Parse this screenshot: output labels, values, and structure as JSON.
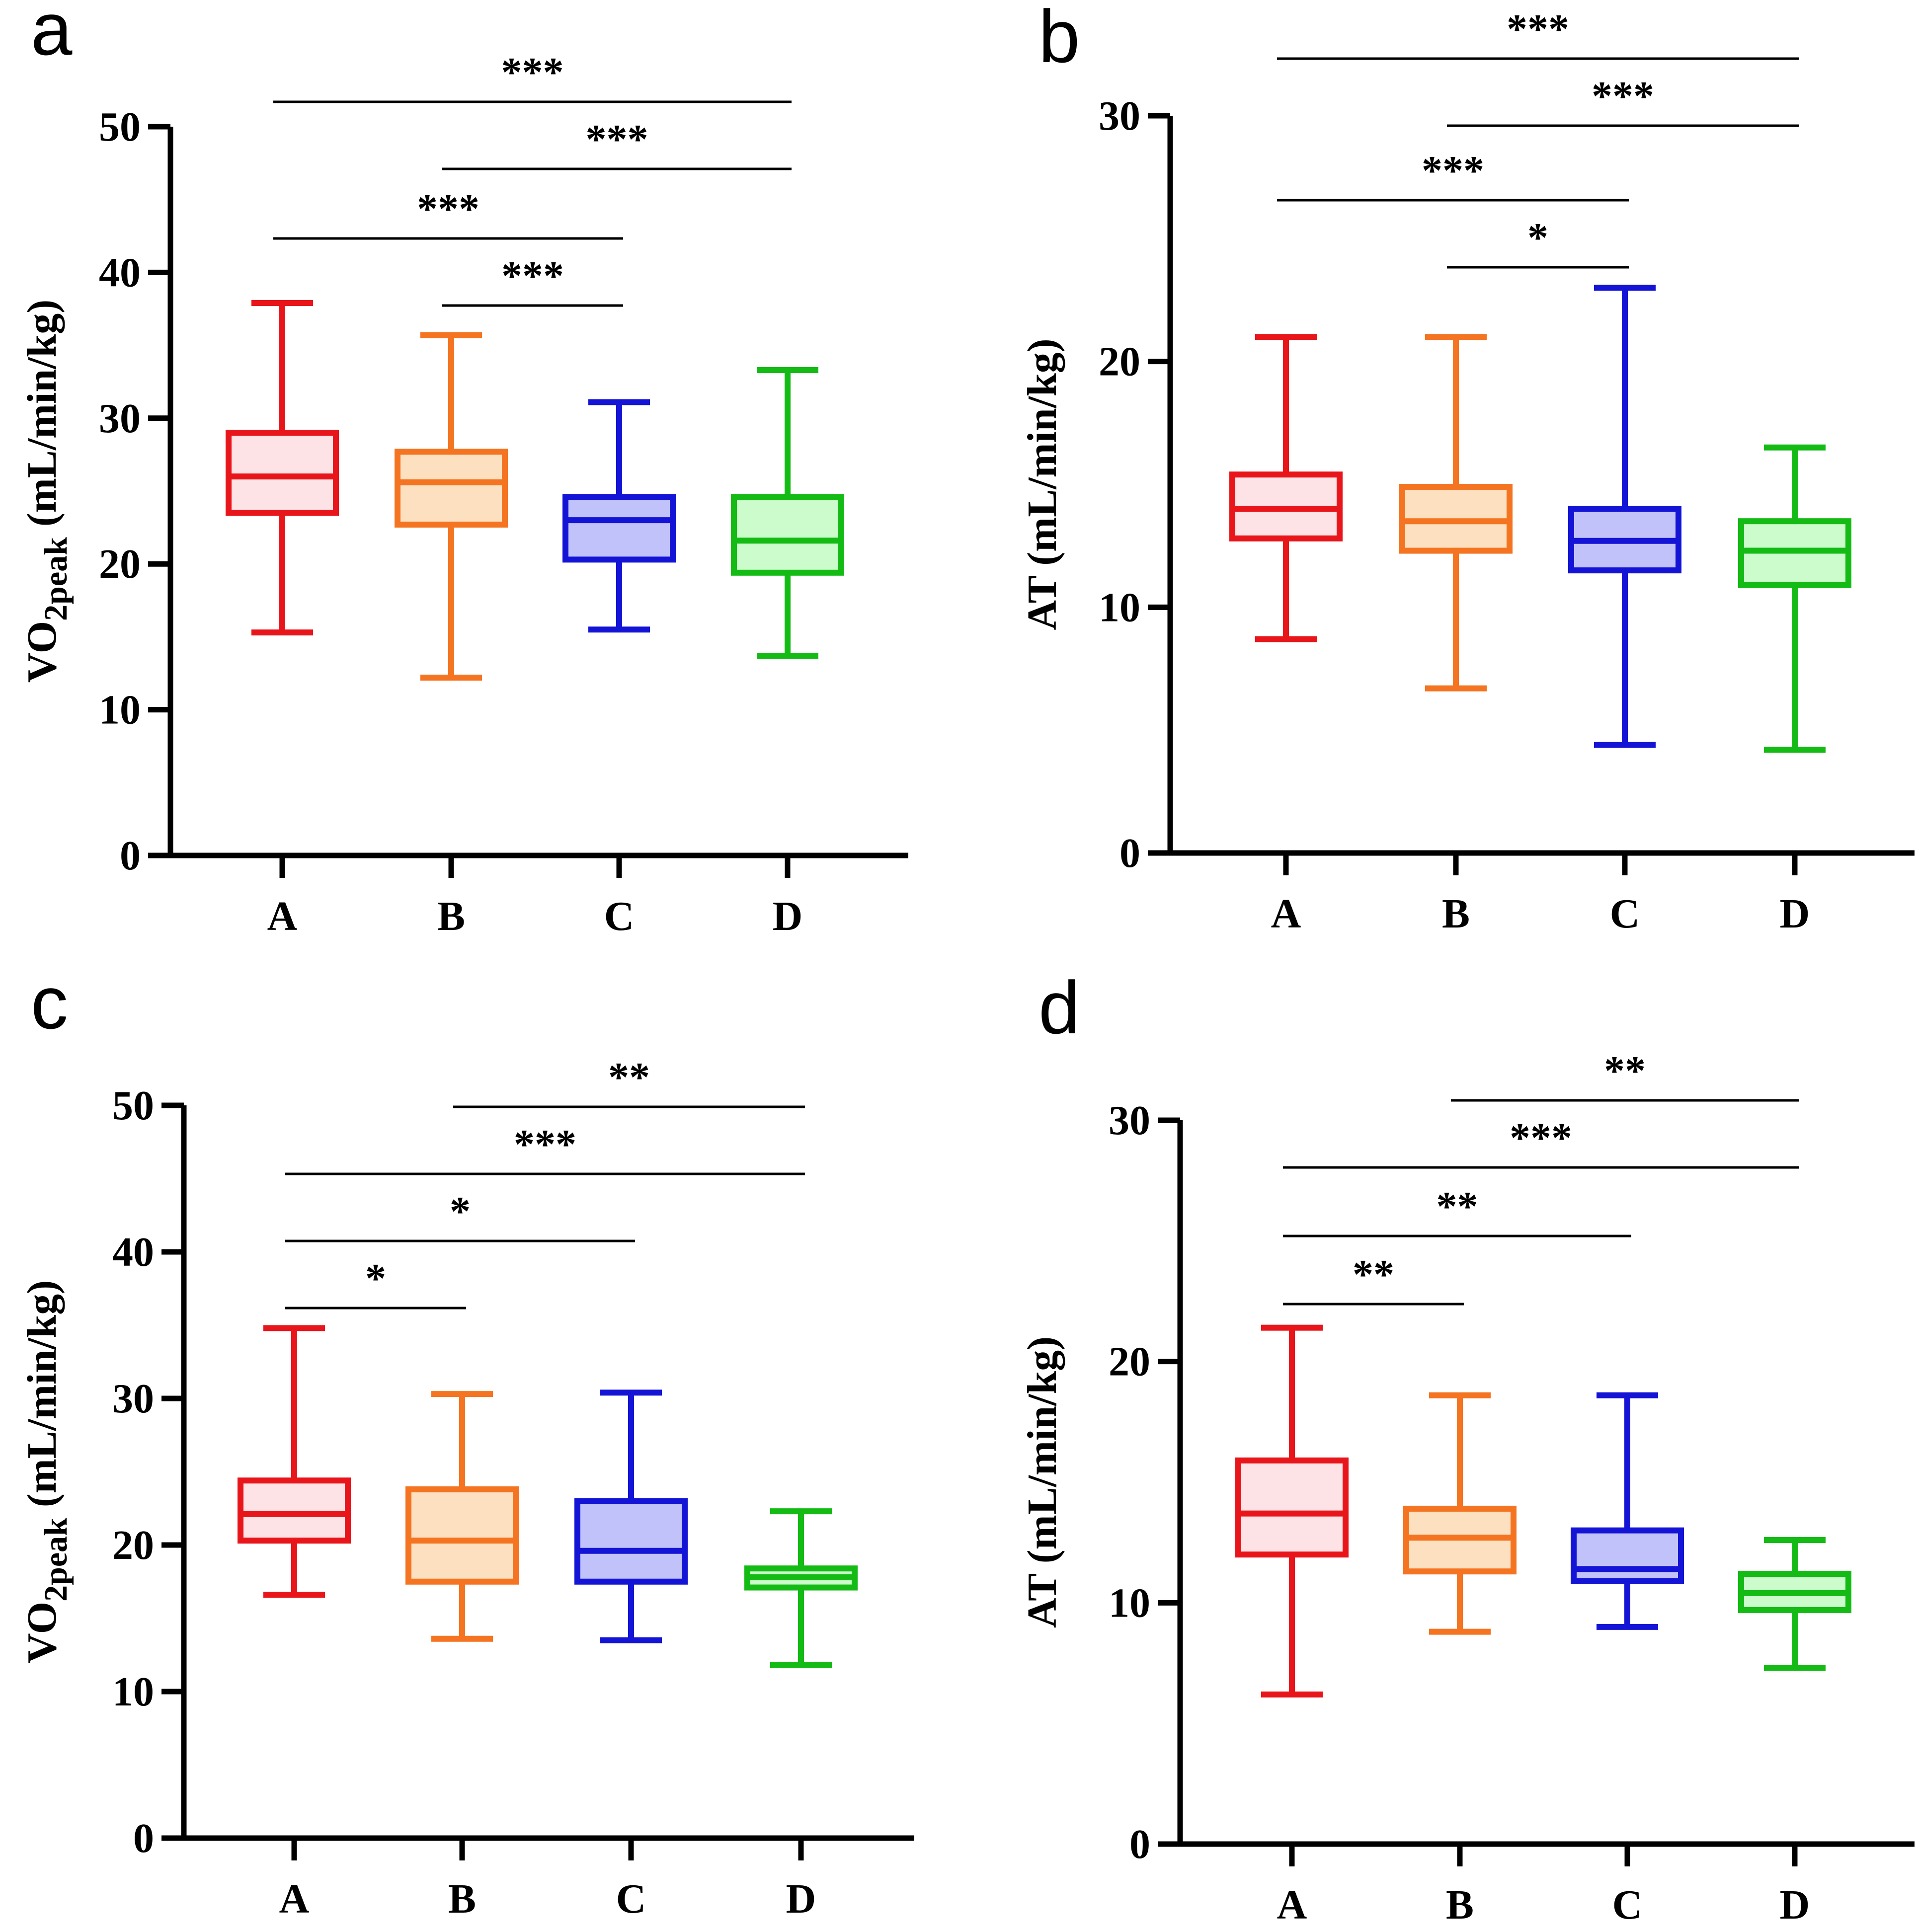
{
  "colors": {
    "A": "#e8161b",
    "B": "#f47421",
    "C": "#1414d6",
    "D": "#14bb14"
  },
  "fill_colors": {
    "A": "#fde3e6",
    "B": "#fde0c0",
    "C": "#c2c2fb",
    "D": "#ccfccc"
  },
  "chart_data": [
    {
      "panel": "a",
      "type": "box",
      "ylabel_main": "VO",
      "ylabel_sub": "2peak",
      "ylabel_rest": " (mL/min/kg)",
      "ylim": [
        0,
        50
      ],
      "yticks": [
        0,
        10,
        20,
        30,
        40,
        50
      ],
      "categories": [
        "A",
        "B",
        "C",
        "D"
      ],
      "boxes": [
        {
          "group": "A",
          "min": 15.3,
          "q1": 23.5,
          "median": 26.0,
          "q3": 29.0,
          "max": 37.9
        },
        {
          "group": "B",
          "min": 12.2,
          "q1": 22.7,
          "median": 25.6,
          "q3": 27.7,
          "max": 35.7
        },
        {
          "group": "C",
          "min": 15.5,
          "q1": 20.3,
          "median": 23.0,
          "q3": 24.6,
          "max": 31.1
        },
        {
          "group": "D",
          "min": 13.7,
          "q1": 19.4,
          "median": 21.6,
          "q3": 24.6,
          "max": 33.3
        }
      ],
      "comparisons": [
        {
          "from": "A",
          "to": "D",
          "label": "***"
        },
        {
          "from": "B",
          "to": "D",
          "label": "***"
        },
        {
          "from": "A",
          "to": "C",
          "label": "***"
        },
        {
          "from": "B",
          "to": "C",
          "label": "***"
        }
      ]
    },
    {
      "panel": "b",
      "type": "box",
      "ylabel_main": "AT",
      "ylabel_sub": "",
      "ylabel_rest": " (mL/min/kg)",
      "ylim": [
        0,
        30
      ],
      "yticks": [
        0,
        10,
        20,
        30
      ],
      "categories": [
        "A",
        "B",
        "C",
        "D"
      ],
      "boxes": [
        {
          "group": "A",
          "min": 8.7,
          "q1": 12.8,
          "median": 14.0,
          "q3": 15.4,
          "max": 21.0
        },
        {
          "group": "B",
          "min": 6.7,
          "q1": 12.3,
          "median": 13.5,
          "q3": 14.9,
          "max": 21.0
        },
        {
          "group": "C",
          "min": 4.4,
          "q1": 11.5,
          "median": 12.7,
          "q3": 14.0,
          "max": 23.0
        },
        {
          "group": "D",
          "min": 4.2,
          "q1": 10.9,
          "median": 12.3,
          "q3": 13.5,
          "max": 16.5
        }
      ],
      "comparisons": [
        {
          "from": "A",
          "to": "D",
          "label": "***"
        },
        {
          "from": "B",
          "to": "D",
          "label": "***"
        },
        {
          "from": "A",
          "to": "C",
          "label": "***"
        },
        {
          "from": "B",
          "to": "C",
          "label": "*"
        }
      ]
    },
    {
      "panel": "c",
      "type": "box",
      "ylabel_main": "VO",
      "ylabel_sub": "2peak",
      "ylabel_rest": " (mL/min/kg)",
      "ylim": [
        0,
        50
      ],
      "yticks": [
        0,
        10,
        20,
        30,
        40,
        50
      ],
      "categories": [
        "A",
        "B",
        "C",
        "D"
      ],
      "boxes": [
        {
          "group": "A",
          "min": 16.6,
          "q1": 20.3,
          "median": 22.1,
          "q3": 24.4,
          "max": 34.8
        },
        {
          "group": "B",
          "min": 13.6,
          "q1": 17.5,
          "median": 20.3,
          "q3": 23.8,
          "max": 30.3
        },
        {
          "group": "C",
          "min": 13.5,
          "q1": 17.5,
          "median": 19.6,
          "q3": 23.0,
          "max": 30.4
        },
        {
          "group": "D",
          "min": 11.8,
          "q1": 17.1,
          "median": 17.8,
          "q3": 18.4,
          "max": 22.3
        }
      ],
      "comparisons": [
        {
          "from": "B",
          "to": "D",
          "label": "**"
        },
        {
          "from": "A",
          "to": "D",
          "label": "***"
        },
        {
          "from": "A",
          "to": "C",
          "label": "*"
        },
        {
          "from": "A",
          "to": "B",
          "label": "*"
        }
      ]
    },
    {
      "panel": "d",
      "type": "box",
      "ylabel_main": "AT",
      "ylabel_sub": "",
      "ylabel_rest": " (mL/min/kg)",
      "ylim": [
        0,
        30
      ],
      "yticks": [
        0,
        10,
        20,
        30
      ],
      "categories": [
        "A",
        "B",
        "C",
        "D"
      ],
      "boxes": [
        {
          "group": "A",
          "min": 6.2,
          "q1": 12.0,
          "median": 13.7,
          "q3": 15.9,
          "max": 21.4
        },
        {
          "group": "B",
          "min": 8.8,
          "q1": 11.3,
          "median": 12.7,
          "q3": 13.9,
          "max": 18.6
        },
        {
          "group": "C",
          "min": 9.0,
          "q1": 10.9,
          "median": 11.4,
          "q3": 13.0,
          "max": 18.6
        },
        {
          "group": "D",
          "min": 7.3,
          "q1": 9.7,
          "median": 10.4,
          "q3": 11.2,
          "max": 12.6
        }
      ],
      "comparisons": [
        {
          "from": "B",
          "to": "D",
          "label": "**"
        },
        {
          "from": "A",
          "to": "D",
          "label": "***"
        },
        {
          "from": "A",
          "to": "C",
          "label": "**"
        },
        {
          "from": "A",
          "to": "B",
          "label": "**"
        }
      ]
    }
  ]
}
